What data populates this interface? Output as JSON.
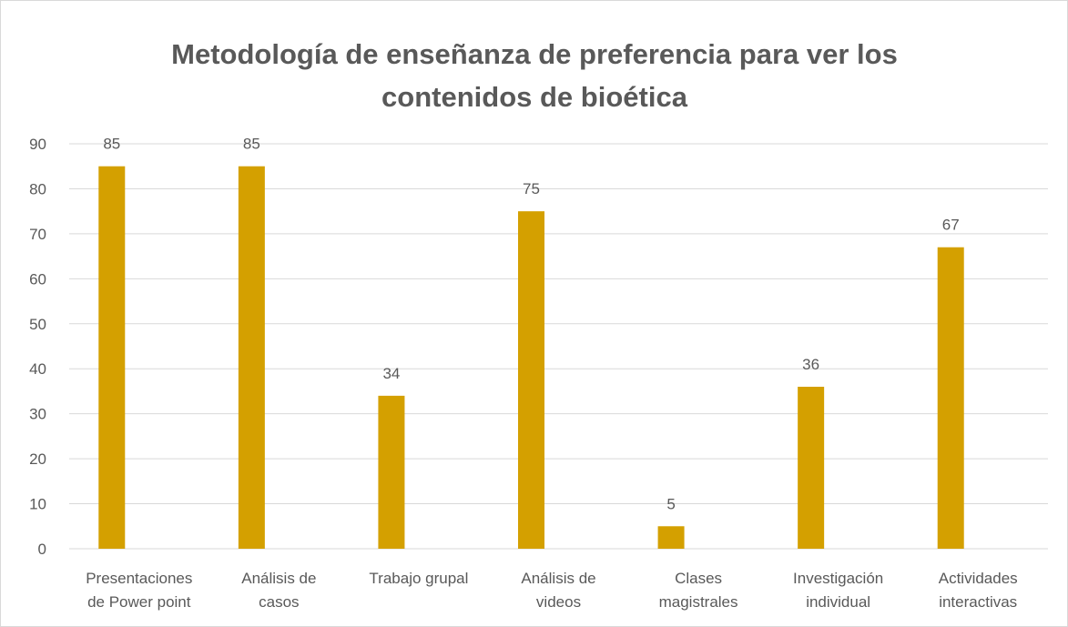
{
  "chart_data": {
    "type": "bar",
    "title": "Metodología de enseñanza de preferencia para ver  los contenidos de bioética",
    "categories": [
      "Presentaciones de Power point",
      "Análisis de casos",
      "Trabajo grupal",
      "Análisis de videos",
      "Clases magistrales",
      "Investigación individual",
      "Actividades interactivas"
    ],
    "values": [
      85,
      85,
      34,
      75,
      5,
      36,
      67
    ],
    "color": "#d4a000",
    "ylim": [
      0,
      90
    ],
    "yticks": [
      0,
      10,
      20,
      30,
      40,
      50,
      60,
      70,
      80,
      90
    ],
    "grid": true
  }
}
